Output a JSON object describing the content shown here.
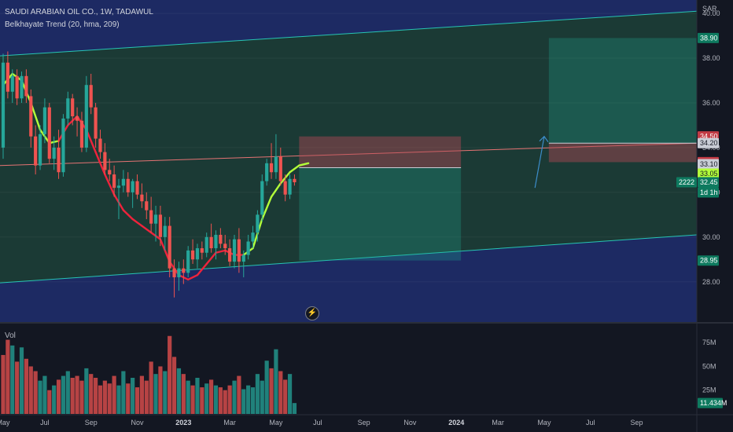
{
  "header": {
    "title": "SAUDI ARABIAN OIL CO., 1W, TADAWUL",
    "indicator": "Belkhayate Trend (20, hma, 209)",
    "currency": "SAR",
    "volume_label": "Vol"
  },
  "flash_icon": "lightning-bolt-icon",
  "colors": {
    "background": "#131722",
    "channel_fill": "#1b3a35",
    "outside_fill": "#1d2a63",
    "up": "#26a69a",
    "down": "#ef5350",
    "trend_up": "#b3ff3a",
    "trend_down": "#ef233c",
    "channel_line": "#27c4b4",
    "mid_line": "#e57373"
  },
  "badges": {
    "target_top": "38.90",
    "entry_stop_top": "34.50",
    "mid_channel": "34.20",
    "stop_level": "33.35",
    "entry_level": "33.10",
    "trend_value": "33.05",
    "last_price": "32.45",
    "countdown": "1d 1h",
    "symbol_tag": "2222",
    "lower_target": "28.95",
    "volume_last": "11.434M"
  },
  "chart_data": {
    "type": "candlestick",
    "x_ticks": [
      "May",
      "Jul",
      "Sep",
      "Nov",
      "2023",
      "Mar",
      "May",
      "Jul",
      "Sep",
      "Nov",
      "2024",
      "Mar",
      "May",
      "Jul",
      "Sep"
    ],
    "y_ticks": [
      "40.00",
      "38.00",
      "36.00",
      "34.00",
      "32.00",
      "30.00",
      "28.00"
    ],
    "ylim": [
      26.2,
      40.6
    ],
    "volume_ticks": [
      "75M",
      "50M",
      "25M"
    ],
    "volume_lim": [
      0,
      95
    ],
    "candles": [
      [
        34.0,
        38.2,
        33.5,
        37.8
      ],
      [
        37.8,
        38.3,
        36.2,
        36.5
      ],
      [
        36.5,
        37.5,
        36.0,
        37.2
      ],
      [
        37.2,
        37.5,
        35.9,
        36.2
      ],
      [
        36.2,
        37.4,
        36.0,
        37.2
      ],
      [
        37.2,
        37.5,
        36.0,
        36.3
      ],
      [
        36.3,
        36.6,
        34.0,
        34.5
      ],
      [
        34.5,
        35.0,
        32.8,
        33.2
      ],
      [
        33.2,
        35.0,
        33.0,
        34.6
      ],
      [
        34.6,
        36.2,
        34.2,
        35.8
      ],
      [
        35.8,
        36.0,
        33.3,
        33.5
      ],
      [
        33.5,
        34.5,
        33.0,
        34.0
      ],
      [
        34.0,
        34.8,
        32.6,
        32.9
      ],
      [
        32.9,
        35.5,
        32.7,
        35.3
      ],
      [
        35.3,
        36.5,
        35.0,
        36.2
      ],
      [
        36.2,
        36.4,
        35.0,
        35.4
      ],
      [
        35.4,
        35.8,
        34.5,
        35.2
      ],
      [
        35.2,
        35.6,
        33.8,
        34.0
      ],
      [
        34.0,
        37.2,
        33.8,
        36.8
      ],
      [
        36.8,
        37.3,
        35.5,
        35.8
      ],
      [
        35.8,
        36.0,
        34.0,
        34.4
      ],
      [
        34.4,
        34.8,
        33.5,
        33.8
      ],
      [
        33.8,
        34.2,
        32.8,
        33.0
      ],
      [
        33.0,
        33.5,
        32.5,
        32.8
      ],
      [
        32.8,
        33.2,
        31.8,
        32.2
      ],
      [
        32.2,
        32.6,
        30.8,
        32.3
      ],
      [
        32.3,
        33.0,
        32.0,
        32.6
      ],
      [
        32.6,
        32.9,
        31.8,
        32.0
      ],
      [
        32.0,
        32.6,
        31.3,
        32.5
      ],
      [
        32.5,
        32.8,
        31.7,
        31.9
      ],
      [
        31.9,
        32.4,
        31.3,
        31.6
      ],
      [
        31.6,
        32.0,
        30.8,
        31.2
      ],
      [
        31.2,
        31.8,
        30.2,
        30.6
      ],
      [
        30.6,
        31.4,
        29.8,
        31.0
      ],
      [
        31.0,
        31.4,
        29.6,
        30.0
      ],
      [
        30.0,
        30.9,
        29.4,
        30.5
      ],
      [
        30.5,
        30.9,
        28.2,
        28.6
      ],
      [
        28.6,
        29.0,
        27.3,
        28.2
      ],
      [
        28.2,
        28.9,
        27.6,
        28.6
      ],
      [
        28.6,
        29.0,
        27.9,
        28.4
      ],
      [
        28.4,
        29.6,
        28.2,
        29.4
      ],
      [
        29.4,
        29.9,
        28.8,
        29.0
      ],
      [
        29.0,
        29.7,
        28.6,
        29.5
      ],
      [
        29.5,
        29.8,
        29.0,
        29.3
      ],
      [
        29.3,
        30.2,
        29.1,
        30.0
      ],
      [
        30.0,
        30.6,
        29.3,
        29.5
      ],
      [
        29.5,
        30.3,
        29.0,
        30.1
      ],
      [
        30.1,
        30.4,
        29.5,
        29.7
      ],
      [
        29.7,
        30.1,
        29.2,
        29.5
      ],
      [
        29.5,
        29.9,
        28.7,
        28.9
      ],
      [
        28.9,
        30.1,
        28.6,
        29.9
      ],
      [
        29.9,
        30.4,
        28.4,
        28.9
      ],
      [
        28.9,
        29.4,
        28.2,
        29.2
      ],
      [
        29.2,
        30.1,
        29.0,
        29.8
      ],
      [
        29.8,
        30.5,
        29.5,
        30.2
      ],
      [
        30.2,
        31.2,
        29.8,
        31.0
      ],
      [
        31.0,
        32.8,
        30.7,
        32.5
      ],
      [
        32.5,
        33.5,
        32.3,
        33.3
      ],
      [
        33.3,
        34.2,
        32.6,
        32.9
      ],
      [
        32.9,
        34.6,
        32.6,
        33.6
      ],
      [
        33.6,
        34.0,
        32.3,
        32.5
      ],
      [
        32.5,
        32.8,
        31.6,
        31.9
      ],
      [
        31.9,
        32.8,
        31.7,
        32.6
      ],
      [
        32.6,
        32.8,
        32.3,
        32.45
      ]
    ],
    "volumes": [
      62,
      78,
      72,
      55,
      70,
      58,
      50,
      45,
      35,
      40,
      25,
      30,
      36,
      40,
      45,
      38,
      40,
      35,
      48,
      42,
      38,
      30,
      35,
      32,
      40,
      30,
      45,
      32,
      38,
      28,
      40,
      35,
      55,
      42,
      50,
      45,
      82,
      60,
      48,
      42,
      35,
      30,
      38,
      28,
      32,
      36,
      30,
      28,
      25,
      30,
      35,
      40,
      26,
      30,
      28,
      42,
      35,
      56,
      48,
      68,
      45,
      36,
      42,
      11.434
    ],
    "vol_up": [
      false,
      false,
      true,
      false,
      true,
      false,
      false,
      false,
      true,
      true,
      false,
      true,
      false,
      true,
      true,
      false,
      false,
      false,
      true,
      false,
      false,
      false,
      false,
      false,
      false,
      true,
      true,
      false,
      true,
      false,
      false,
      false,
      false,
      true,
      false,
      true,
      false,
      false,
      true,
      false,
      true,
      false,
      true,
      false,
      true,
      false,
      true,
      false,
      false,
      false,
      true,
      false,
      true,
      true,
      true,
      true,
      true,
      true,
      false,
      true,
      false,
      false,
      true,
      true
    ],
    "channel": {
      "upper": [
        38.1,
        40.1
      ],
      "mid": [
        33.2,
        34.2
      ],
      "lower": [
        27.95,
        30.1
      ]
    },
    "trend": [
      [
        0,
        36.8,
        "up"
      ],
      [
        2,
        37.3,
        "up"
      ],
      [
        4,
        37.0,
        "up"
      ],
      [
        6,
        36.0,
        "up"
      ],
      [
        8,
        34.8,
        "up"
      ],
      [
        10,
        34.2,
        "up"
      ],
      [
        12,
        34.3,
        "down"
      ],
      [
        14,
        35.0,
        "down"
      ],
      [
        16,
        35.4,
        "down"
      ],
      [
        18,
        34.8,
        "down"
      ],
      [
        20,
        33.8,
        "down"
      ],
      [
        22,
        32.8,
        "down"
      ],
      [
        24,
        31.9,
        "down"
      ],
      [
        26,
        31.2,
        "down"
      ],
      [
        28,
        30.8,
        "down"
      ],
      [
        30,
        30.5,
        "down"
      ],
      [
        32,
        30.2,
        "down"
      ],
      [
        34,
        29.9,
        "down"
      ],
      [
        36,
        28.9,
        "down"
      ],
      [
        38,
        28.3,
        "down"
      ],
      [
        40,
        28.1,
        "down"
      ],
      [
        42,
        28.3,
        "down"
      ],
      [
        44,
        28.8,
        "down"
      ],
      [
        46,
        29.3,
        "down"
      ],
      [
        48,
        29.4,
        "down"
      ],
      [
        50,
        29.2,
        "down"
      ],
      [
        52,
        29.2,
        "up"
      ],
      [
        54,
        29.5,
        "up"
      ],
      [
        56,
        30.8,
        "up"
      ],
      [
        58,
        31.8,
        "up"
      ],
      [
        60,
        32.4,
        "up"
      ],
      [
        62,
        32.9,
        "up"
      ],
      [
        64,
        33.2,
        "up"
      ],
      [
        66,
        33.3,
        "up"
      ]
    ],
    "positions": [
      {
        "x0": 64,
        "x1": 99,
        "target": 28.95,
        "entry": 33.1,
        "stop": 34.5
      },
      {
        "x0": 118,
        "x1": 155,
        "target": 38.9,
        "entry": 34.2,
        "stop": 33.35
      }
    ],
    "arrow": {
      "x0": 115,
      "x1": 117,
      "y0": 32.2,
      "y1": 34.5
    }
  }
}
